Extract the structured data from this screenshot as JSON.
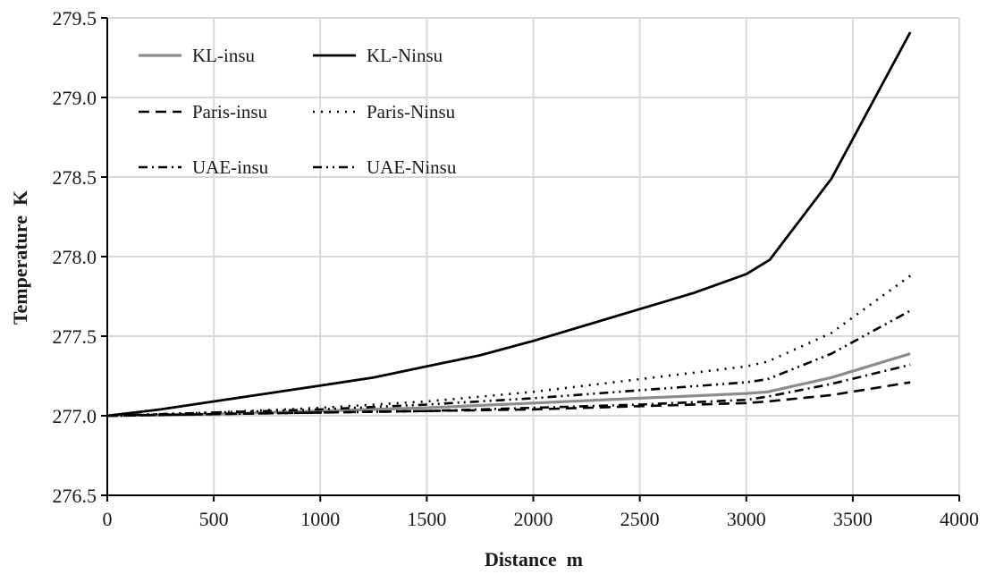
{
  "chart_data": {
    "type": "line",
    "title": "",
    "xlabel": "Distance  m",
    "ylabel": "Temperature  K",
    "xlim": [
      0,
      4000
    ],
    "ylim": [
      276.5,
      279.5
    ],
    "xticks": [
      0,
      500,
      1000,
      1500,
      2000,
      2500,
      3000,
      3500,
      4000
    ],
    "yticks": [
      276.5,
      277.0,
      277.5,
      278.0,
      278.5,
      279.0,
      279.5
    ],
    "xtick_labels": [
      "0",
      "500",
      "1000",
      "1500",
      "2000",
      "2500",
      "3000",
      "3500",
      "4000"
    ],
    "ytick_labels": [
      "276.5",
      "277.0",
      "277.5",
      "278.0",
      "278.5",
      "279.0",
      "279.5"
    ],
    "grid": true,
    "legend_position": "top-left",
    "series": [
      {
        "name": "KL-insu",
        "color": "#8c8c8c",
        "dash": "",
        "width": 3.2,
        "x": [
          0,
          500,
          1000,
          1500,
          2000,
          2500,
          3000,
          3100,
          3400,
          3770
        ],
        "y": [
          277.0,
          277.01,
          277.03,
          277.05,
          277.08,
          277.11,
          277.14,
          277.15,
          277.24,
          277.39
        ]
      },
      {
        "name": "KL-Ninsu",
        "color": "#000000",
        "dash": "",
        "width": 2.8,
        "x": [
          0,
          250,
          500,
          750,
          1000,
          1250,
          1500,
          1750,
          2000,
          2250,
          2500,
          2750,
          3000,
          3110,
          3400,
          3770
        ],
        "y": [
          277.0,
          277.04,
          277.09,
          277.14,
          277.19,
          277.24,
          277.31,
          277.38,
          277.47,
          277.57,
          277.67,
          277.77,
          277.89,
          277.98,
          278.49,
          279.41
        ]
      },
      {
        "name": "Paris-insu",
        "color": "#000000",
        "dash": "12,7",
        "width": 2.6,
        "x": [
          0,
          500,
          1000,
          1500,
          2000,
          2500,
          3000,
          3100,
          3400,
          3770
        ],
        "y": [
          277.0,
          277.01,
          277.02,
          277.03,
          277.04,
          277.06,
          277.08,
          277.09,
          277.13,
          277.21
        ]
      },
      {
        "name": "Paris-Ninsu",
        "color": "#000000",
        "dash": "2,7",
        "width": 2.6,
        "x": [
          0,
          500,
          1000,
          1500,
          2000,
          2500,
          3000,
          3100,
          3400,
          3770
        ],
        "y": [
          277.0,
          277.02,
          277.05,
          277.09,
          277.15,
          277.23,
          277.31,
          277.34,
          277.52,
          277.88
        ]
      },
      {
        "name": "UAE-insu",
        "color": "#000000",
        "dash": "10,5,2,5",
        "width": 2.6,
        "x": [
          0,
          500,
          1000,
          1500,
          2000,
          2500,
          3000,
          3100,
          3400,
          3770
        ],
        "y": [
          277.0,
          277.01,
          277.02,
          277.03,
          277.05,
          277.07,
          277.1,
          277.12,
          277.2,
          277.32
        ]
      },
      {
        "name": "UAE-Ninsu",
        "color": "#000000",
        "dash": "10,5,2,5,2,5",
        "width": 2.6,
        "x": [
          0,
          500,
          1000,
          1500,
          2000,
          2500,
          3000,
          3100,
          3400,
          3770
        ],
        "y": [
          277.0,
          277.02,
          277.04,
          277.07,
          277.11,
          277.16,
          277.21,
          277.23,
          277.39,
          277.66
        ]
      }
    ]
  }
}
